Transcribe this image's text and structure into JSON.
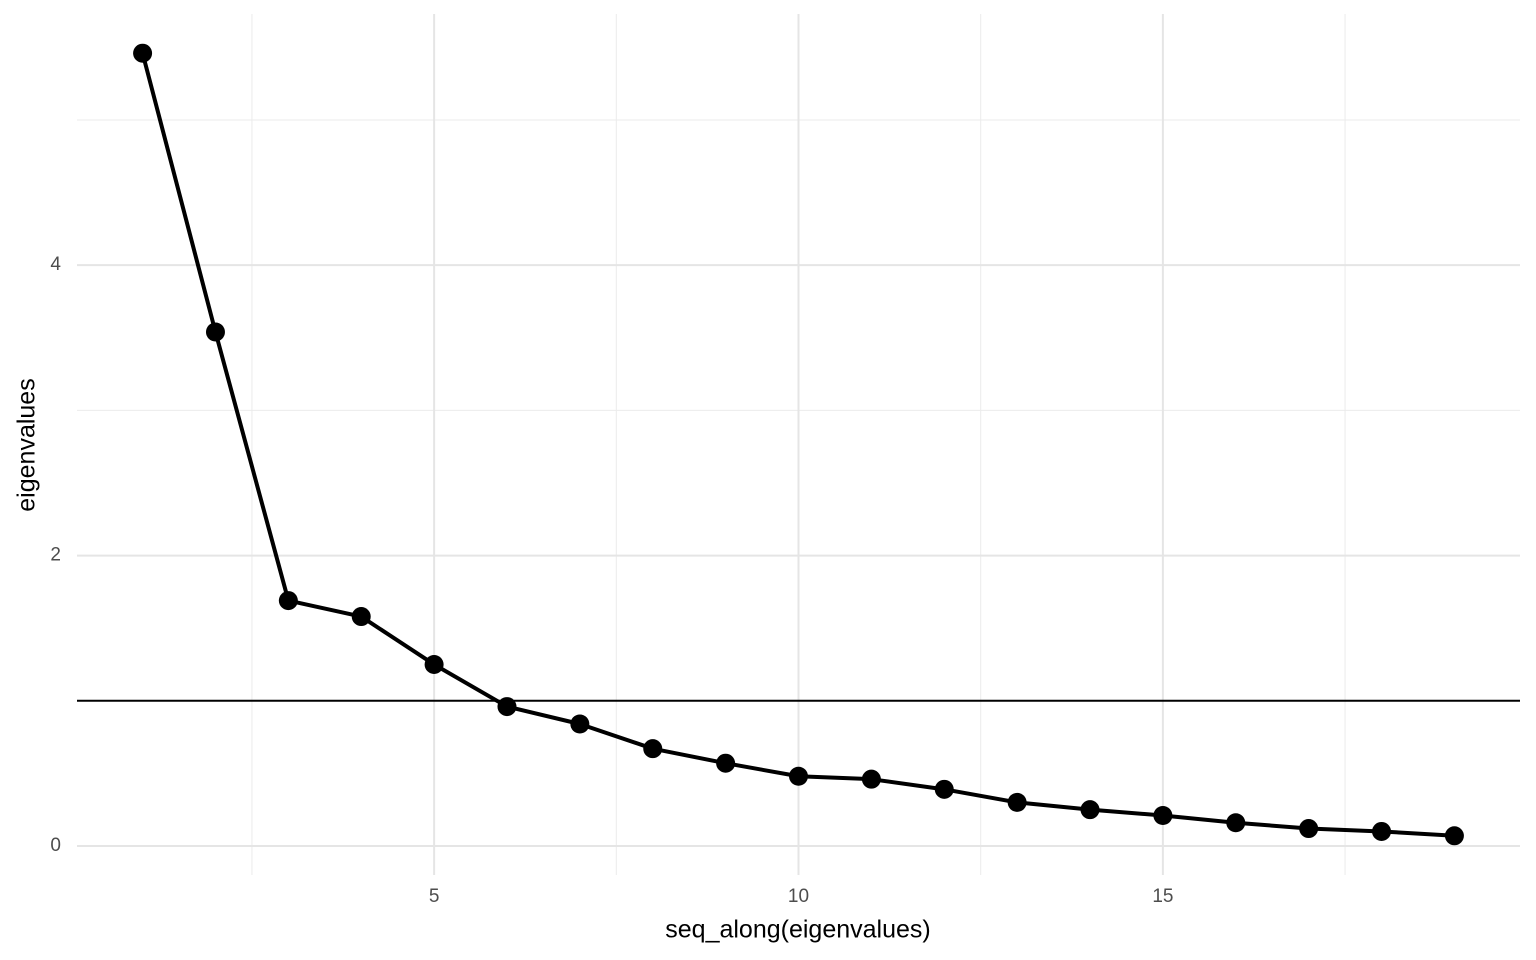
{
  "chart_data": {
    "type": "line",
    "x_label": "seq_along(eigenvalues)",
    "y_label": "eigenvalues",
    "x": [
      1,
      2,
      3,
      4,
      5,
      6,
      7,
      8,
      9,
      10,
      11,
      12,
      13,
      14,
      15,
      16,
      17,
      18,
      19
    ],
    "series": [
      {
        "name": "eigenvalues",
        "color": "#000000",
        "values": [
          5.46,
          3.54,
          1.69,
          1.58,
          1.25,
          0.96,
          0.84,
          0.67,
          0.57,
          0.48,
          0.46,
          0.39,
          0.3,
          0.25,
          0.21,
          0.16,
          0.12,
          0.1,
          0.07
        ]
      }
    ],
    "xlim": [
      0.1,
      19.9
    ],
    "ylim": [
      -0.2,
      5.73
    ],
    "xticks": [
      5,
      10,
      15
    ],
    "yticks": [
      0,
      2,
      4
    ],
    "x_minor_grid": [
      2.5,
      7.5,
      12.5,
      17.5
    ],
    "y_minor_grid": [
      1,
      3,
      5
    ],
    "hline": 1,
    "grid": true
  }
}
